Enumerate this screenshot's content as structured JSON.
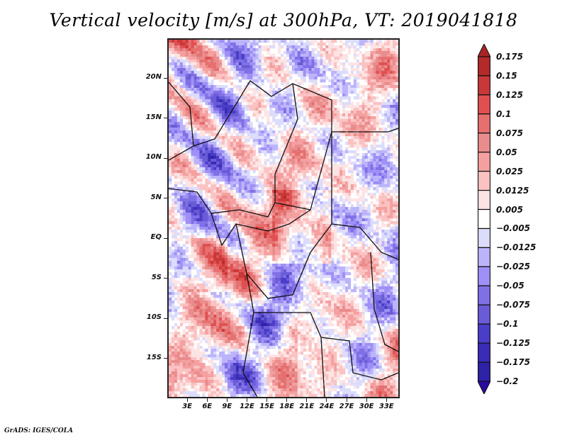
{
  "title": "Vertical velocity [m/s] at 300hPa, VT: 2019041818",
  "footer": "GrADS: IGES/COLA",
  "map": {
    "variable": "Vertical velocity",
    "units": "m/s",
    "level": "300hPa",
    "valid_time": "2019041818",
    "region": "Central Africa",
    "lat_range": [
      -20,
      25
    ],
    "lon_range": [
      0,
      35
    ],
    "y_ticks": [
      {
        "label": "20N",
        "value": 20
      },
      {
        "label": "15N",
        "value": 15
      },
      {
        "label": "10N",
        "value": 10
      },
      {
        "label": "5N",
        "value": 5
      },
      {
        "label": "EQ",
        "value": 0
      },
      {
        "label": "5S",
        "value": -5
      },
      {
        "label": "10S",
        "value": -10
      },
      {
        "label": "15S",
        "value": -15
      }
    ],
    "x_ticks": [
      {
        "label": "3E",
        "value": 3
      },
      {
        "label": "6E",
        "value": 6
      },
      {
        "label": "9E",
        "value": 9
      },
      {
        "label": "12E",
        "value": 12
      },
      {
        "label": "15E",
        "value": 15
      },
      {
        "label": "18E",
        "value": 18
      },
      {
        "label": "21E",
        "value": 21
      },
      {
        "label": "24E",
        "value": 24
      },
      {
        "label": "27E",
        "value": 27
      },
      {
        "label": "30E",
        "value": 30
      },
      {
        "label": "33E",
        "value": 33
      }
    ]
  },
  "colorbar": {
    "top_arrow_color": "#a82424",
    "bottom_arrow_color": "#2a0aa0",
    "levels": [
      {
        "label": "0.175",
        "value": 0.175
      },
      {
        "label": "0.15",
        "value": 0.15
      },
      {
        "label": "0.125",
        "value": 0.125
      },
      {
        "label": "0.1",
        "value": 0.1
      },
      {
        "label": "0.075",
        "value": 0.075
      },
      {
        "label": "0.05",
        "value": 0.05
      },
      {
        "label": "0.025",
        "value": 0.025
      },
      {
        "label": "0.0125",
        "value": 0.0125
      },
      {
        "label": "0.005",
        "value": 0.005
      },
      {
        "label": "−0.005",
        "value": -0.005
      },
      {
        "label": "−0.0125",
        "value": -0.0125
      },
      {
        "label": "−0.025",
        "value": -0.025
      },
      {
        "label": "−0.05",
        "value": -0.05
      },
      {
        "label": "−0.075",
        "value": -0.075
      },
      {
        "label": "−0.1",
        "value": -0.1
      },
      {
        "label": "−0.125",
        "value": -0.125
      },
      {
        "label": "−0.175",
        "value": -0.175
      },
      {
        "label": "−0.2",
        "value": -0.2
      }
    ],
    "bins": [
      "#b22a2a",
      "#c93838",
      "#e05050",
      "#e67070",
      "#e88c8c",
      "#f5a0a0",
      "#fbc2c2",
      "#fde4e4",
      "#ffffff",
      "#dcdcfc",
      "#bcb4fa",
      "#9e90f6",
      "#8070e6",
      "#6a5cd6",
      "#4a3ec8",
      "#3a2cb6",
      "#2e22a6"
    ]
  }
}
